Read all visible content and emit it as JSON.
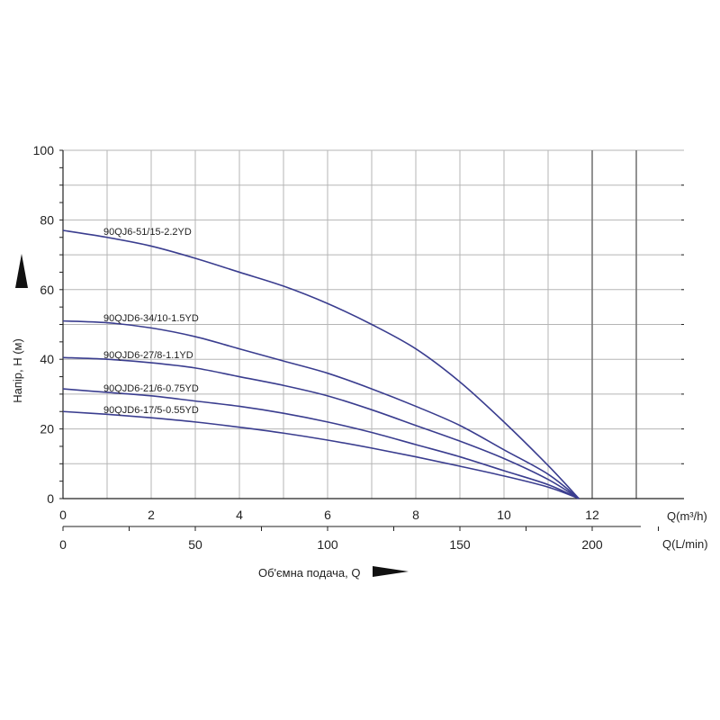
{
  "chart_data": {
    "type": "line",
    "ylabel": "Напір, H (м)",
    "xlabel": "Об'ємна подача, Q",
    "x_unit_primary": "Q(m³/h)",
    "x_unit_secondary": "Q(L/min)",
    "xlim": [
      0,
      14
    ],
    "ylim": [
      0,
      100
    ],
    "x_ticks": [
      0,
      2,
      4,
      6,
      8,
      10,
      12
    ],
    "y_ticks": [
      0,
      20,
      40,
      60,
      80,
      100
    ],
    "x2_ticks": [
      0,
      50,
      100,
      150,
      200
    ],
    "grid": true,
    "series": [
      {
        "name": "90QJ6-51/15-2.2YD",
        "color": "#3a3d8f",
        "x": [
          0,
          1,
          2,
          3,
          4,
          5,
          6,
          7,
          8,
          9,
          10,
          11,
          11.7
        ],
        "y": [
          77,
          75,
          72.5,
          69,
          65,
          61,
          56,
          50,
          43,
          33.5,
          22,
          9.5,
          0
        ]
      },
      {
        "name": "90QJD6-34/10-1.5YD",
        "color": "#3a3d8f",
        "x": [
          0,
          1,
          2,
          3,
          4,
          5,
          6,
          7,
          8,
          9,
          10,
          11,
          11.7
        ],
        "y": [
          51,
          50.5,
          49,
          46.5,
          43,
          39.5,
          36,
          31.5,
          26.5,
          21,
          14,
          7,
          0
        ]
      },
      {
        "name": "90QJD6-27/8-1.1YD",
        "color": "#3a3d8f",
        "x": [
          0,
          1,
          2,
          3,
          4,
          5,
          6,
          7,
          8,
          9,
          10,
          11,
          11.7
        ],
        "y": [
          40.5,
          40,
          39,
          37.5,
          35,
          32.5,
          29.5,
          25.5,
          21,
          16.5,
          11.5,
          5.5,
          0
        ]
      },
      {
        "name": "90QJD6-21/6-0.75YD",
        "color": "#3a3d8f",
        "x": [
          0,
          1,
          2,
          3,
          4,
          5,
          6,
          7,
          8,
          9,
          10,
          11,
          11.7
        ],
        "y": [
          31.5,
          30.5,
          29.5,
          28,
          26.5,
          24.5,
          22,
          19,
          15.5,
          12,
          8,
          4,
          0
        ]
      },
      {
        "name": "90QJD6-17/5-0.55YD",
        "color": "#3a3d8f",
        "x": [
          0,
          1,
          2,
          3,
          4,
          5,
          6,
          7,
          8,
          9,
          10,
          11,
          11.7
        ],
        "y": [
          25,
          24.2,
          23.2,
          22,
          20.5,
          18.8,
          16.8,
          14.5,
          12,
          9.3,
          6.5,
          3.3,
          0
        ]
      }
    ]
  }
}
